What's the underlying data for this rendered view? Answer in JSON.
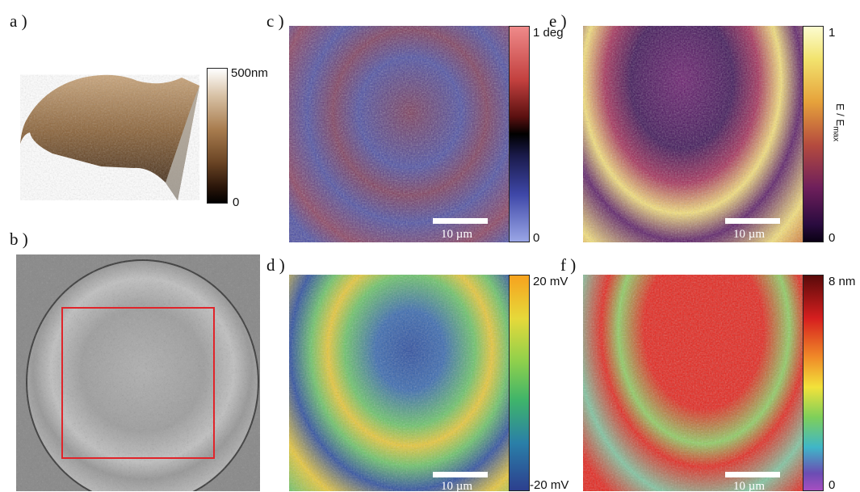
{
  "panels": {
    "a": {
      "label": "a )",
      "colorbar_max": "500nm",
      "colorbar_min": "0"
    },
    "b": {
      "label": "b )"
    },
    "c": {
      "label": "c )",
      "colorbar_max": "1 deg",
      "colorbar_min": "0",
      "scalebar": "10 µm"
    },
    "d": {
      "label": "d )",
      "colorbar_max": "20 mV",
      "colorbar_min": "-20 mV",
      "scalebar": "10 µm"
    },
    "e": {
      "label": "e )",
      "colorbar_max": "1",
      "colorbar_min": "0",
      "colorbar_title": "E / E",
      "colorbar_title_sub": "max",
      "scalebar": "10 µm"
    },
    "f": {
      "label": "f )",
      "colorbar_max": "8 nm",
      "colorbar_min": "0",
      "scalebar": "10 µm"
    }
  },
  "colors": {
    "selection_box": "#e0242a",
    "afm_brown": "#8a6238",
    "phase_blue": "#4b4da3",
    "phase_red": "#e36a68",
    "kpfm_blue": "#2e4fa0",
    "kpfm_green": "#6cc46a",
    "kpfm_yellow": "#e9c83a",
    "mod_dark": "#35104f",
    "mod_yellow": "#f6e27a",
    "height_red": "#e5261e",
    "height_green": "#8fcf63"
  }
}
